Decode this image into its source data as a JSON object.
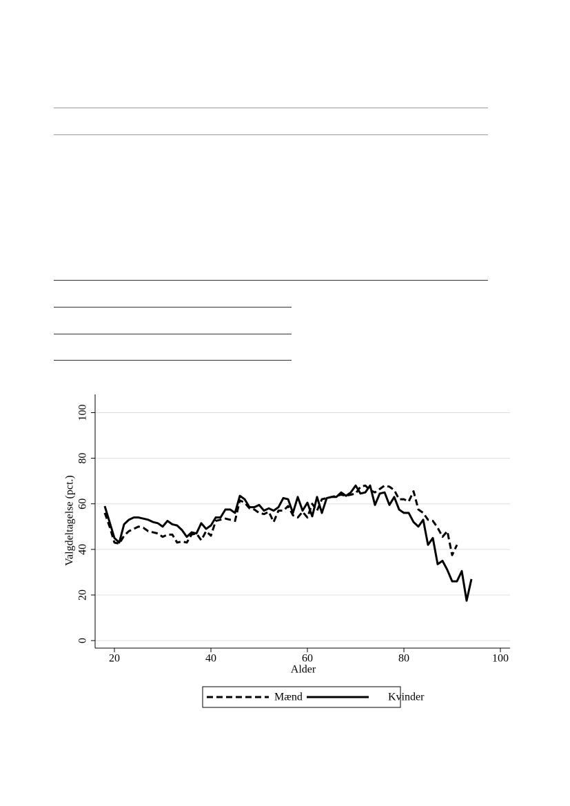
{
  "chart_data": {
    "type": "line",
    "x_label": "Alder",
    "y_label": "Valgdeltagelse (pct.)",
    "x": [
      18,
      19,
      20,
      21,
      22,
      23,
      24,
      25,
      26,
      27,
      28,
      29,
      30,
      31,
      32,
      33,
      34,
      35,
      36,
      37,
      38,
      39,
      40,
      41,
      42,
      43,
      44,
      45,
      46,
      47,
      48,
      49,
      50,
      51,
      52,
      53,
      54,
      55,
      56,
      57,
      58,
      59,
      60,
      61,
      62,
      63,
      64,
      65,
      66,
      67,
      68,
      69,
      70,
      71,
      72,
      73,
      74,
      75,
      76,
      77,
      78,
      79,
      80,
      81,
      82,
      83,
      84,
      85,
      86,
      87,
      88,
      89,
      90,
      91,
      92,
      93,
      94
    ],
    "series": [
      {
        "name": "Mænd",
        "color": "#000000",
        "line_style": "dashed",
        "values": [
          56,
          50,
          43,
          42.5,
          46,
          48,
          49,
          50,
          49.5,
          48,
          47.5,
          47,
          45.5,
          46.5,
          46.5,
          43,
          43.5,
          43,
          46.5,
          47,
          44,
          48,
          46,
          52.5,
          53,
          53.5,
          53,
          52.5,
          61.5,
          60.5,
          58,
          57.5,
          56,
          55.5,
          56.5,
          52,
          57,
          57,
          59,
          55,
          54,
          56.5,
          54,
          60,
          57,
          62,
          62.5,
          63,
          63.5,
          64,
          63.5,
          64,
          64.5,
          67.5,
          68,
          66,
          65,
          66.5,
          68,
          67.5,
          66,
          62,
          62,
          61,
          65.5,
          57.5,
          56,
          53,
          52.5,
          49.5,
          45.5,
          48,
          37.5,
          42,
          null,
          null,
          null
        ]
      },
      {
        "name": "Kvinder",
        "color": "#000000",
        "line_style": "solid",
        "values": [
          59,
          52,
          45,
          43,
          51,
          53,
          54,
          54,
          53.5,
          53,
          52,
          51.5,
          50,
          52.5,
          51,
          50.5,
          48.5,
          45.5,
          47.5,
          47,
          51.5,
          49,
          50.5,
          54,
          54,
          57.5,
          57.5,
          56,
          63.5,
          62,
          58.5,
          58.5,
          59.5,
          57,
          58,
          57,
          58.5,
          62.5,
          62,
          56,
          63,
          57,
          60.5,
          54.5,
          63,
          56,
          62.5,
          63,
          63,
          65,
          63.5,
          65,
          68,
          64.5,
          65,
          68,
          59.5,
          64.5,
          65,
          59.5,
          63,
          57.5,
          56,
          56,
          52,
          50,
          53,
          42,
          45,
          33.5,
          35,
          31,
          26,
          26,
          30.5,
          17.5,
          27
        ]
      }
    ],
    "xlim": [
      16,
      102
    ],
    "ylim": [
      -3.3,
      108
    ],
    "xticks": [
      20,
      40,
      60,
      80,
      100
    ],
    "yticks": [
      0,
      20,
      40,
      60,
      80,
      100
    ],
    "grid": true,
    "legend": "bottom"
  }
}
